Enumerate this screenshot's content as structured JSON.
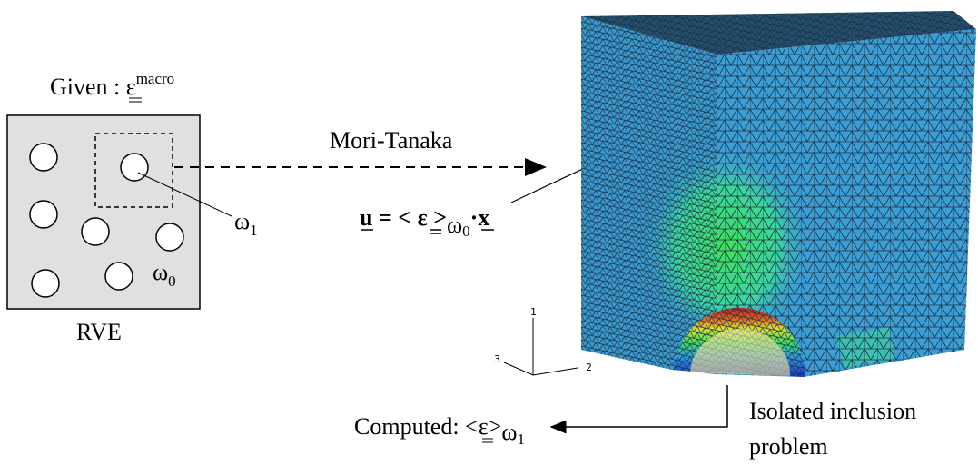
{
  "given": {
    "label": "Given :",
    "symbol": "ε",
    "superscript": "macro"
  },
  "rve": {
    "label": "RVE",
    "inclusion": {
      "symbol": "ω",
      "subscript": "1"
    },
    "matrix": {
      "symbol": "ω",
      "subscript": "0"
    }
  },
  "arrow_label": "Mori-Tanaka",
  "equation": {
    "displacement": "u",
    "relation": "= <",
    "strain": "ε",
    "close": ">",
    "domain": "ω",
    "domain_subscript": "0",
    "dot": "·",
    "position": "x"
  },
  "axes": {
    "axis_1": "1",
    "axis_2": "2",
    "axis_3": "3"
  },
  "computed": {
    "label": "Computed: <",
    "strain": "ε",
    "close": ">",
    "domain": "ω",
    "domain_subscript": "1"
  },
  "problem": {
    "lines": [
      "Isolated inclusion",
      "problem"
    ]
  }
}
